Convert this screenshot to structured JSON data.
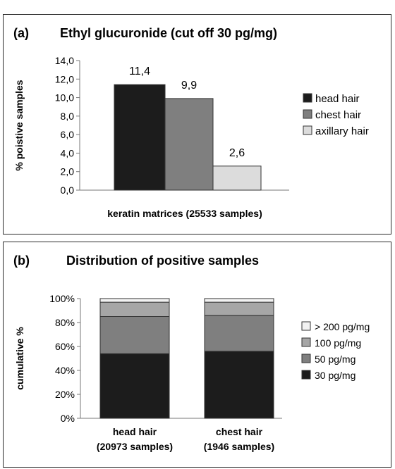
{
  "chart_data": [
    {
      "type": "bar",
      "panel_label": "(a)",
      "title": "Ethyl glucuronide (cut off 30 pg/mg)",
      "xlabel": "keratin matrices (25533 samples)",
      "ylabel": "% poistive samples",
      "ylim": [
        0,
        14
      ],
      "yticks": [
        "0,0",
        "2,0",
        "4,0",
        "6,0",
        "8,0",
        "10,0",
        "12,0",
        "14,0"
      ],
      "ytick_values": [
        0,
        2,
        4,
        6,
        8,
        10,
        12,
        14
      ],
      "series": [
        {
          "name": "head hair",
          "value": 11.4,
          "value_label": "11,4",
          "color": "#1c1c1c"
        },
        {
          "name": "chest hair",
          "value": 9.9,
          "value_label": "9,9",
          "color": "#7f7f7f"
        },
        {
          "name": "axillary hair",
          "value": 2.6,
          "value_label": "2,6",
          "color": "#dcdcdc"
        }
      ],
      "legend_position": "right",
      "grid": false
    },
    {
      "type": "bar",
      "stacked": true,
      "panel_label": "(b)",
      "title": "Distribution of positive samples",
      "ylabel": "cumulative %",
      "ylim": [
        0,
        100
      ],
      "yticks": [
        "0%",
        "20%",
        "40%",
        "60%",
        "80%",
        "100%"
      ],
      "ytick_values": [
        0,
        20,
        40,
        60,
        80,
        100
      ],
      "categories": [
        "head hair",
        "chest hair"
      ],
      "category_sublabels": [
        "(20973 samples)",
        "(1946 samples)"
      ],
      "series": [
        {
          "name": "30 pg/mg",
          "values": [
            54,
            56
          ],
          "color": "#1c1c1c"
        },
        {
          "name": "50 pg/mg",
          "values": [
            31,
            30
          ],
          "color": "#7f7f7f"
        },
        {
          "name": "100 pg/mg",
          "values": [
            12,
            11
          ],
          "color": "#a6a6a6"
        },
        {
          "name": "> 200 pg/mg",
          "values": [
            3,
            3
          ],
          "color": "#f2f2f2"
        }
      ],
      "legend_order": [
        "> 200 pg/mg",
        "100 pg/mg",
        "50 pg/mg",
        "30 pg/mg"
      ],
      "legend_position": "right",
      "grid": false
    }
  ]
}
